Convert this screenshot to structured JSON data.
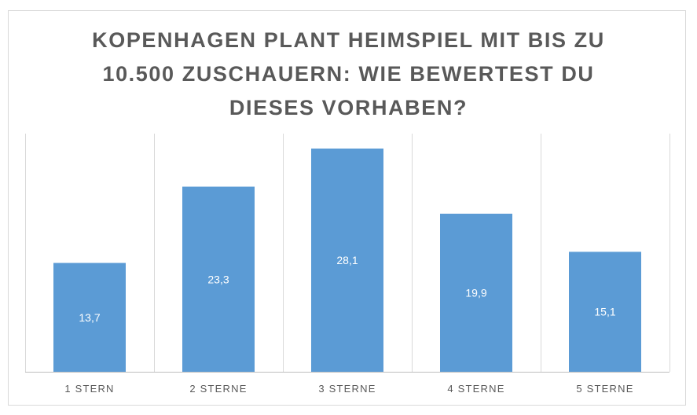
{
  "chart_data": {
    "type": "bar",
    "title": "KOPENHAGEN PLANT HEIMSPIEL MIT BIS ZU 10.500 ZUSCHAUERN: WIE BEWERTEST DU DIESES VORHABEN?",
    "categories": [
      "1 STERN",
      "2 STERNE",
      "3 STERNE",
      "4 STERNE",
      "5 STERNE"
    ],
    "values": [
      13.7,
      23.3,
      28.1,
      19.9,
      15.1
    ],
    "value_labels": [
      "13,7",
      "23,3",
      "28,1",
      "19,9",
      "15,1"
    ],
    "xlabel": "",
    "ylabel": "",
    "ylim": [
      0,
      30
    ],
    "grid": "vertical separators between categories",
    "legend": "none",
    "colors": {
      "bar": "#5b9bd5",
      "value_label": "#ffffff",
      "category_label": "#595959",
      "title": "#595959",
      "gridline": "#d9d9d9",
      "axis": "#bfbfbf"
    }
  }
}
